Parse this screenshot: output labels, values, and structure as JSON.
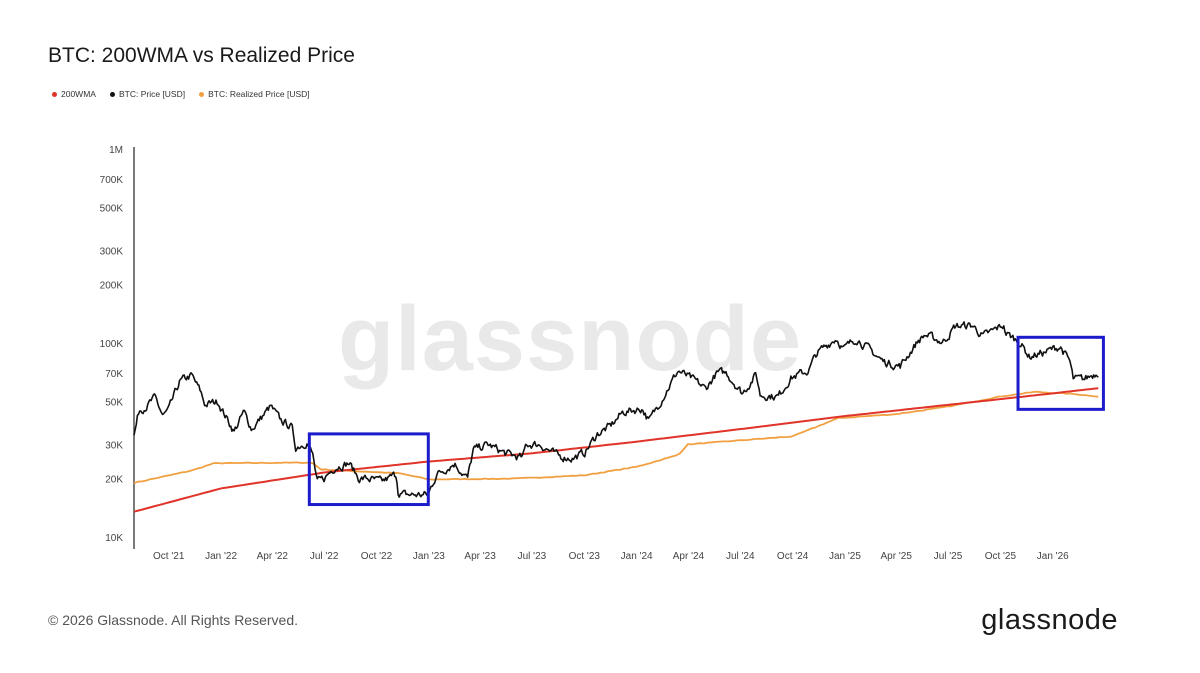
{
  "title": "BTC: 200WMA vs Realized Price",
  "footer": "© 2026 Glassnode. All Rights Reserved.",
  "logo": "glassnode",
  "watermark": "glassnode",
  "legend": [
    {
      "label": "200WMA",
      "color": "#e0332a"
    },
    {
      "label": "BTC: Price [USD]",
      "color": "#111111"
    },
    {
      "label": "BTC: Realized Price [USD]",
      "color": "#f0a040"
    }
  ],
  "chart_data": {
    "type": "line",
    "title": "BTC: 200WMA vs Realized Price",
    "y_scale": "log",
    "ylim": [
      10000,
      1000000
    ],
    "xlim": [
      "2021-08-01",
      "2026-03-25"
    ],
    "y_ticks": [
      {
        "value": 10000,
        "label": "10K"
      },
      {
        "value": 20000,
        "label": "20K"
      },
      {
        "value": 30000,
        "label": "30K"
      },
      {
        "value": 50000,
        "label": "50K"
      },
      {
        "value": 70000,
        "label": "70K"
      },
      {
        "value": 100000,
        "label": "100K"
      },
      {
        "value": 200000,
        "label": "200K"
      },
      {
        "value": 300000,
        "label": "300K"
      },
      {
        "value": 500000,
        "label": "500K"
      },
      {
        "value": 700000,
        "label": "700K"
      },
      {
        "value": 1000000,
        "label": "1M"
      }
    ],
    "x_ticks": [
      {
        "date": "2021-10-01",
        "label": "Oct '21"
      },
      {
        "date": "2022-01-01",
        "label": "Jan '22"
      },
      {
        "date": "2022-04-01",
        "label": "Apr '22"
      },
      {
        "date": "2022-07-01",
        "label": "Jul '22"
      },
      {
        "date": "2022-10-01",
        "label": "Oct '22"
      },
      {
        "date": "2023-01-01",
        "label": "Jan '23"
      },
      {
        "date": "2023-04-01",
        "label": "Apr '23"
      },
      {
        "date": "2023-07-01",
        "label": "Jul '23"
      },
      {
        "date": "2023-10-01",
        "label": "Oct '23"
      },
      {
        "date": "2024-01-01",
        "label": "Jan '24"
      },
      {
        "date": "2024-04-01",
        "label": "Apr '24"
      },
      {
        "date": "2024-07-01",
        "label": "Jul '24"
      },
      {
        "date": "2024-10-01",
        "label": "Oct '24"
      },
      {
        "date": "2025-01-01",
        "label": "Jan '25"
      },
      {
        "date": "2025-04-01",
        "label": "Apr '25"
      },
      {
        "date": "2025-07-01",
        "label": "Jul '25"
      },
      {
        "date": "2025-10-01",
        "label": "Oct '25"
      },
      {
        "date": "2026-01-01",
        "label": "Jan '26"
      }
    ],
    "series": [
      {
        "name": "BTC: Price [USD]",
        "color": "#111111",
        "points": [
          [
            "2021-08-01",
            33000
          ],
          [
            "2021-08-10",
            45000
          ],
          [
            "2021-08-25",
            48000
          ],
          [
            "2021-09-07",
            52000
          ],
          [
            "2021-09-21",
            42000
          ],
          [
            "2021-10-01",
            45000
          ],
          [
            "2021-10-20",
            63000
          ],
          [
            "2021-11-10",
            68000
          ],
          [
            "2021-11-26",
            56000
          ],
          [
            "2021-12-04",
            48000
          ],
          [
            "2021-12-27",
            50000
          ],
          [
            "2022-01-05",
            44000
          ],
          [
            "2022-01-24",
            35000
          ],
          [
            "2022-02-10",
            44000
          ],
          [
            "2022-02-24",
            36000
          ],
          [
            "2022-03-29",
            47000
          ],
          [
            "2022-04-15",
            40000
          ],
          [
            "2022-05-05",
            37000
          ],
          [
            "2022-05-12",
            29000
          ],
          [
            "2022-06-01",
            31000
          ],
          [
            "2022-06-12",
            26000
          ],
          [
            "2022-06-18",
            19000
          ],
          [
            "2022-07-01",
            20000
          ],
          [
            "2022-07-20",
            23000
          ],
          [
            "2022-08-14",
            24000
          ],
          [
            "2022-08-31",
            20000
          ],
          [
            "2022-09-15",
            20000
          ],
          [
            "2022-10-10",
            19200
          ],
          [
            "2022-11-05",
            21000
          ],
          [
            "2022-11-09",
            16500
          ],
          [
            "2022-11-25",
            16500
          ],
          [
            "2022-12-31",
            16500
          ],
          [
            "2023-01-14",
            21000
          ],
          [
            "2023-02-15",
            24000
          ],
          [
            "2023-03-10",
            20000
          ],
          [
            "2023-03-20",
            28000
          ],
          [
            "2023-04-14",
            30000
          ],
          [
            "2023-05-15",
            27000
          ],
          [
            "2023-06-15",
            25500
          ],
          [
            "2023-06-21",
            30000
          ],
          [
            "2023-07-15",
            30000
          ],
          [
            "2023-08-17",
            26000
          ],
          [
            "2023-09-11",
            25500
          ],
          [
            "2023-10-01",
            27000
          ],
          [
            "2023-10-24",
            34000
          ],
          [
            "2023-11-15",
            37000
          ],
          [
            "2023-12-08",
            44000
          ],
          [
            "2024-01-11",
            46000
          ],
          [
            "2024-01-23",
            39500
          ],
          [
            "2024-02-15",
            52000
          ],
          [
            "2024-03-14",
            72000
          ],
          [
            "2024-04-15",
            63000
          ],
          [
            "2024-05-01",
            58000
          ],
          [
            "2024-05-21",
            70000
          ],
          [
            "2024-06-07",
            70000
          ],
          [
            "2024-07-05",
            55000
          ],
          [
            "2024-07-29",
            69000
          ],
          [
            "2024-08-05",
            54000
          ],
          [
            "2024-09-06",
            53000
          ],
          [
            "2024-09-27",
            66000
          ],
          [
            "2024-10-29",
            72000
          ],
          [
            "2024-11-12",
            88000
          ],
          [
            "2024-12-05",
            100000
          ],
          [
            "2024-12-17",
            106000
          ],
          [
            "2024-12-30",
            93000
          ],
          [
            "2025-01-21",
            106000
          ],
          [
            "2025-02-25",
            86000
          ],
          [
            "2025-03-10",
            80000
          ],
          [
            "2025-04-08",
            76000
          ],
          [
            "2025-05-10",
            103000
          ],
          [
            "2025-05-22",
            110000
          ],
          [
            "2025-06-22",
            101000
          ],
          [
            "2025-07-14",
            122000
          ],
          [
            "2025-08-13",
            123000
          ],
          [
            "2025-09-01",
            108000
          ],
          [
            "2025-10-06",
            124000
          ],
          [
            "2025-10-11",
            112000
          ],
          [
            "2025-11-04",
            101000
          ],
          [
            "2025-11-21",
            85000
          ],
          [
            "2025-12-15",
            89000
          ],
          [
            "2026-01-14",
            96000
          ],
          [
            "2026-01-31",
            80000
          ],
          [
            "2026-02-06",
            65000
          ],
          [
            "2026-02-25",
            65000
          ],
          [
            "2026-03-10",
            68000
          ],
          [
            "2026-03-22",
            71000
          ]
        ]
      },
      {
        "name": "200WMA",
        "color": "#e0332a",
        "points": [
          [
            "2021-08-01",
            13500
          ],
          [
            "2022-01-01",
            17800
          ],
          [
            "2022-07-01",
            21500
          ],
          [
            "2023-01-01",
            24500
          ],
          [
            "2023-07-01",
            27000
          ],
          [
            "2024-01-01",
            31000
          ],
          [
            "2024-07-01",
            36000
          ],
          [
            "2025-01-01",
            42000
          ],
          [
            "2025-07-01",
            48000
          ],
          [
            "2026-01-01",
            55000
          ],
          [
            "2026-03-22",
            58500
          ]
        ]
      },
      {
        "name": "BTC: Realized Price [USD]",
        "color": "#f0a040",
        "points": [
          [
            "2021-08-01",
            19000
          ],
          [
            "2021-11-10",
            22000
          ],
          [
            "2021-12-20",
            24000
          ],
          [
            "2022-06-10",
            24200
          ],
          [
            "2022-06-25",
            22300
          ],
          [
            "2022-11-10",
            21300
          ],
          [
            "2023-01-01",
            19800
          ],
          [
            "2023-06-01",
            20000
          ],
          [
            "2023-10-01",
            20800
          ],
          [
            "2024-01-01",
            23000
          ],
          [
            "2024-03-14",
            26500
          ],
          [
            "2024-03-31",
            30000
          ],
          [
            "2024-07-01",
            31500
          ],
          [
            "2024-10-01",
            33000
          ],
          [
            "2024-11-12",
            37000
          ],
          [
            "2024-12-20",
            41000
          ],
          [
            "2025-04-01",
            43000
          ],
          [
            "2025-07-01",
            47000
          ],
          [
            "2025-10-01",
            53000
          ],
          [
            "2025-12-01",
            56000
          ],
          [
            "2026-02-10",
            54500
          ],
          [
            "2026-03-22",
            53000
          ]
        ]
      }
    ],
    "annotations": [
      {
        "type": "box",
        "color": "#1c1ccc",
        "x": [
          "2022-06-05",
          "2022-12-31"
        ],
        "y": [
          14700,
          34000
        ]
      },
      {
        "type": "box",
        "color": "#1c1ccc",
        "x": [
          "2025-11-01",
          "2026-03-31"
        ],
        "y": [
          45500,
          107000
        ]
      }
    ]
  }
}
